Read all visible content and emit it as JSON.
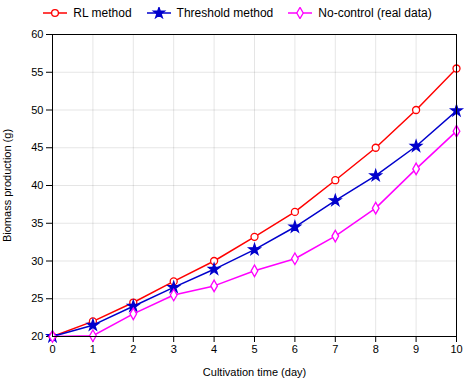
{
  "chart_data": {
    "type": "line",
    "xlabel": "Cultivation time (day)",
    "ylabel": "Biomass production (g)",
    "x": [
      0,
      1,
      2,
      3,
      4,
      5,
      6,
      7,
      8,
      9,
      10
    ],
    "series": [
      {
        "name": "RL method",
        "color": "#ff0000",
        "marker": "circle",
        "values": [
          20.0,
          22.0,
          24.5,
          27.3,
          30.0,
          33.2,
          36.5,
          40.7,
          45.0,
          50.0,
          55.5
        ]
      },
      {
        "name": "Threshold method",
        "color": "#0000cc",
        "marker": "star",
        "values": [
          20.0,
          21.5,
          24.0,
          26.5,
          28.9,
          31.5,
          34.5,
          38.0,
          41.3,
          45.2,
          49.9
        ]
      },
      {
        "name": "No-control (real data)",
        "color": "#ff00ff",
        "marker": "diamond",
        "values": [
          20.0,
          20.1,
          23.0,
          25.5,
          26.7,
          28.7,
          30.3,
          33.3,
          37.0,
          42.2,
          47.2
        ]
      }
    ],
    "xlim": [
      0,
      10
    ],
    "ylim": [
      20,
      60
    ],
    "xticks": [
      0,
      1,
      2,
      3,
      4,
      5,
      6,
      7,
      8,
      9,
      10
    ],
    "yticks": [
      20,
      25,
      30,
      35,
      40,
      45,
      50,
      55,
      60
    ],
    "grid": true,
    "legend": "top"
  }
}
